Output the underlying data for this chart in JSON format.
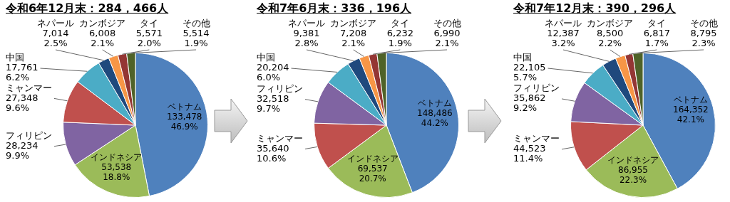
{
  "chart_data": [
    {
      "type": "pie",
      "title": "令和6年12月末：284，466人",
      "categories": [
        "ベトナム",
        "インドネシア",
        "フィリピン",
        "ミャンマー",
        "中国",
        "ネパール",
        "カンボジア",
        "タイ",
        "その他"
      ],
      "values": [
        133478,
        53538,
        28234,
        27348,
        17761,
        7014,
        6008,
        5571,
        5514
      ],
      "colors": [
        "#4f81bd",
        "#9bbb59",
        "#8064a2",
        "#c0504d",
        "#4bacc6",
        "#1f497d",
        "#f79646",
        "#943634",
        "#4f6228"
      ],
      "value_labels": [
        "133,478\n46.9%",
        "53,538\n18.8%",
        "28,234\n9.9%",
        "27,348\n9.6%",
        "17,761\n6.2%",
        "7,014\n2.5%",
        "6,008\n2.1%",
        "5,571\n2.0%",
        "5,514\n1.9%"
      ]
    },
    {
      "type": "pie",
      "title": "令和7年6月末：336，196人",
      "categories": [
        "ベトナム",
        "インドネシア",
        "ミャンマー",
        "フィリピン",
        "中国",
        "ネパール",
        "カンボジア",
        "タイ",
        "その他"
      ],
      "values": [
        148486,
        69537,
        35640,
        32518,
        20204,
        9381,
        7208,
        6232,
        6990
      ],
      "colors": [
        "#4f81bd",
        "#9bbb59",
        "#c0504d",
        "#8064a2",
        "#4bacc6",
        "#1f497d",
        "#f79646",
        "#943634",
        "#4f6228"
      ],
      "value_labels": [
        "148,486\n44.2%",
        "69,537\n20.7%",
        "35,640\n10.6%",
        "32,518\n9.7%",
        "20,204\n6.0%",
        "9,381\n2.8%",
        "7,208\n2.1%",
        "6,232\n1.9%",
        "6,990\n2.1%"
      ]
    },
    {
      "type": "pie",
      "title": "令和7年12月末：390，296人",
      "categories": [
        "ベトナム",
        "インドネシア",
        "ミャンマー",
        "フィリピン",
        "中国",
        "ネパール",
        "カンボジア",
        "タイ",
        "その他"
      ],
      "values": [
        164352,
        86955,
        44523,
        35862,
        22105,
        12387,
        8500,
        6817,
        8795
      ],
      "colors": [
        "#4f81bd",
        "#9bbb59",
        "#c0504d",
        "#8064a2",
        "#4bacc6",
        "#1f497d",
        "#f79646",
        "#943634",
        "#4f6228"
      ],
      "value_labels": [
        "164,352\n42.1%",
        "86,955\n22.3%",
        "44,523\n11.4%",
        "35,862\n9.2%",
        "22,105\n5.7%",
        "12,387\n3.2%",
        "8,500\n2.2%",
        "6,817\n1.7%",
        "8,795\n2.3%"
      ]
    }
  ]
}
